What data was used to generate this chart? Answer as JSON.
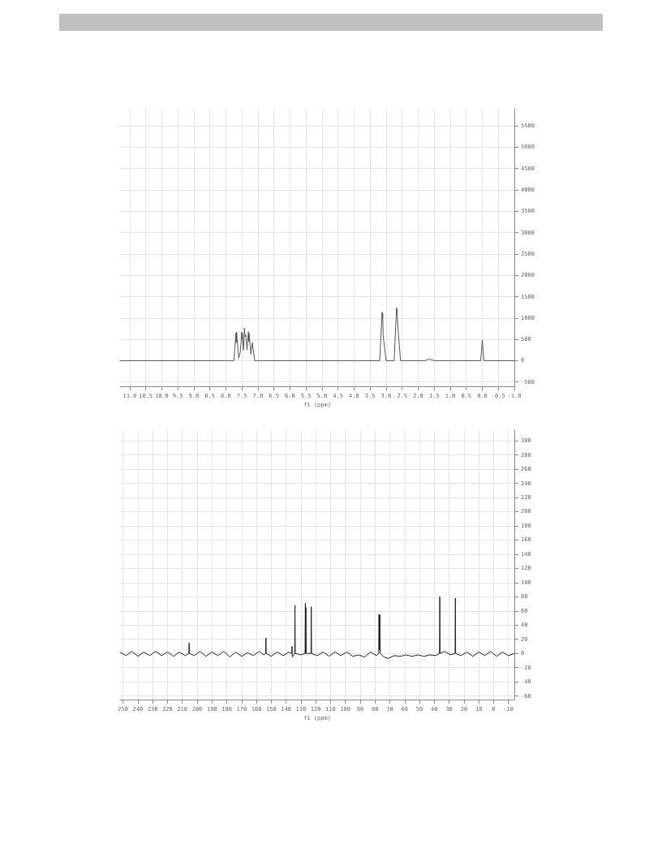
{
  "chart_data": [
    {
      "type": "line",
      "xlabel": "f1 (ppm)",
      "xlim": [
        11.3,
        -1.0
      ],
      "ylim": [
        -600,
        5900
      ],
      "xticks": [
        {
          "value": 11,
          "label": "11.0"
        },
        10.5,
        {
          "value": 10,
          "label": "10.0"
        },
        9.5,
        {
          "value": 9,
          "label": "9.0"
        },
        8.5,
        {
          "value": 8,
          "label": "8.0"
        },
        7.5,
        {
          "value": 7,
          "label": "7.0"
        },
        6.5,
        {
          "value": 6,
          "label": "6.0"
        },
        5.5,
        {
          "value": 5,
          "label": "5.0"
        },
        4.5,
        {
          "value": 4,
          "label": "4.0"
        },
        3.5,
        {
          "value": 3,
          "label": "3.0"
        },
        2.5,
        {
          "value": 2,
          "label": "2.0"
        },
        1.5,
        {
          "value": 1,
          "label": "1.0"
        },
        0.5,
        {
          "value": 0,
          "label": "0.0"
        },
        -0.5,
        {
          "value": -1,
          "label": "-1.0"
        }
      ],
      "yticks": [
        -500,
        0,
        500,
        1000,
        1500,
        2000,
        2500,
        3000,
        3500,
        4000,
        4500,
        5000,
        5500
      ],
      "grid": true,
      "marker": "none",
      "line_style": "solid",
      "series": [
        {
          "color": "#555555",
          "x": [
            11.3,
            8.0,
            7.75,
            7.685,
            7.675,
            7.665,
            7.6,
            7.55,
            7.505,
            7.495,
            7.485,
            7.45,
            7.42,
            7.4,
            7.38,
            7.34,
            7.295,
            7.285,
            7.275,
            7.22,
            7.175,
            7.165,
            7.1,
            4.0,
            3.2,
            3.125,
            3.115,
            3.105,
            3.095,
            3.0,
            2.75,
            2.675,
            2.665,
            2.655,
            2.645,
            2.55,
            1.8,
            1.65,
            1.5,
            0.05,
            0.0,
            -0.05,
            -1.0
          ],
          "values": [
            0,
            0,
            0,
            650,
            420,
            670,
            60,
            200,
            670,
            500,
            640,
            250,
            770,
            560,
            600,
            250,
            680,
            450,
            640,
            150,
            420,
            410,
            0,
            0,
            0,
            1140,
            1000,
            1100,
            600,
            0,
            0,
            1240,
            1150,
            1200,
            900,
            0,
            0,
            40,
            0,
            0,
            480,
            0,
            0
          ]
        }
      ]
    },
    {
      "type": "line",
      "xlabel": "f1 (ppm)",
      "xlim": [
        252,
        -14
      ],
      "ylim": [
        -65,
        315
      ],
      "xticks": [
        250,
        240,
        230,
        220,
        210,
        200,
        190,
        180,
        170,
        160,
        150,
        140,
        130,
        120,
        110,
        100,
        90,
        80,
        70,
        60,
        50,
        40,
        30,
        20,
        10,
        0,
        -10
      ],
      "yticks": [
        -60,
        -40,
        -20,
        0,
        20,
        40,
        60,
        80,
        100,
        120,
        140,
        160,
        180,
        200,
        220,
        240,
        260,
        280,
        300
      ],
      "grid": true,
      "marker": "none",
      "line_style": "solid",
      "series": [
        {
          "color": "#222222",
          "x": [
            252,
            248,
            244,
            240,
            236,
            232,
            228,
            224,
            220,
            216,
            212,
            208,
            205.6,
            205.4,
            205.2,
            202,
            198,
            194,
            190,
            186,
            182,
            178,
            174,
            170,
            166,
            162,
            158,
            155,
            153.8,
            153.6,
            153.4,
            150,
            146,
            142,
            138,
            136.2,
            136,
            135.8,
            134.2,
            134,
            133.8,
            130,
            127.2,
            127,
            126.8,
            126.6,
            126.4,
            123.2,
            123,
            122.8,
            119,
            115,
            111,
            107,
            103,
            99,
            95,
            91,
            87,
            83,
            79,
            77.5,
            77.3,
            77.1,
            77.0,
            76.9,
            76.7,
            76.5,
            74,
            71,
            67,
            63,
            59,
            55,
            51,
            47,
            43,
            39,
            36.5,
            36.3,
            36.1,
            33,
            29,
            26,
            25.8,
            25.6,
            22,
            18,
            14,
            10,
            6,
            2,
            -2,
            -6,
            -10,
            -14
          ],
          "values": [
            2,
            -3,
            3,
            -4,
            2,
            -3,
            3,
            -3,
            2,
            -4,
            2,
            -3,
            0,
            15,
            0,
            -3,
            3,
            -4,
            2,
            -3,
            3,
            -5,
            2,
            -4,
            1,
            -3,
            3,
            -2,
            0,
            22,
            0,
            -4,
            2,
            -3,
            2,
            0,
            10,
            -5,
            0,
            68,
            0,
            -2,
            0,
            71,
            0,
            65,
            0,
            0,
            66,
            0,
            -3,
            2,
            -4,
            2,
            -3,
            2,
            -4,
            -2,
            -5,
            2,
            -3,
            0,
            55,
            5,
            55,
            5,
            54,
            0,
            -5,
            -7,
            -3,
            -4,
            -2,
            -4,
            -2,
            -4,
            -2,
            -3,
            0,
            80,
            0,
            3,
            -2,
            0,
            78,
            0,
            -3,
            2,
            -4,
            2,
            -3,
            3,
            -4,
            2,
            -3,
            0
          ]
        }
      ]
    }
  ]
}
